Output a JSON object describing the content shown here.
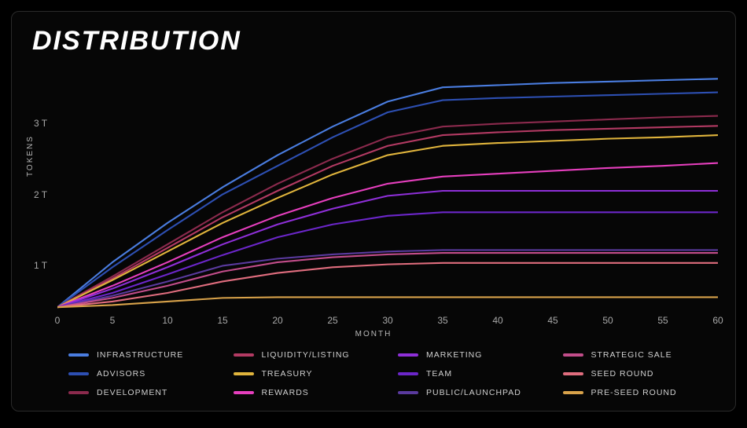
{
  "title": "DISTRIBUTION",
  "axes": {
    "x": {
      "label": "MONTH",
      "min": 0,
      "max": 60,
      "ticks": [
        0,
        5,
        10,
        15,
        20,
        25,
        30,
        35,
        40,
        45,
        50,
        55,
        60
      ],
      "tick_fontsize": 12,
      "tick_color": "#a9a9a9",
      "label_fontsize": 10,
      "label_color": "#b8b8b8"
    },
    "y": {
      "label": "TOKENS",
      "min": 0.4,
      "max": 3.7,
      "ticks": [
        1,
        2,
        3
      ],
      "tick_labels": [
        "1 T",
        "2 T",
        "3 T"
      ],
      "tick_fontsize": 12,
      "tick_color": "#a9a9a9",
      "label_fontsize": 10,
      "label_color": "#b8b8b8"
    }
  },
  "plot": {
    "type": "line",
    "background_color": "#060606",
    "panel_border_color": "#2a2a2a",
    "panel_border_radius": 10,
    "line_width": 2.1,
    "title_style": {
      "color": "#ffffff",
      "fontsize": 34,
      "weight": 800,
      "letter_spacing": 2,
      "italic": true
    }
  },
  "x_values": [
    0,
    5,
    10,
    15,
    20,
    25,
    30,
    35,
    40,
    45,
    50,
    55,
    60
  ],
  "series": [
    {
      "id": "infrastructure",
      "label": "INFRASTRUCTURE",
      "color": "#4a7de0",
      "y": [
        0.42,
        1.05,
        1.6,
        2.1,
        2.55,
        2.95,
        3.3,
        3.5,
        3.53,
        3.56,
        3.58,
        3.6,
        3.62
      ]
    },
    {
      "id": "advisors",
      "label": "ADVISORS",
      "color": "#2d4fb2",
      "y": [
        0.42,
        0.98,
        1.5,
        2.0,
        2.4,
        2.8,
        3.15,
        3.32,
        3.35,
        3.37,
        3.39,
        3.41,
        3.43
      ]
    },
    {
      "id": "development",
      "label": "DEVELOPMENT",
      "color": "#8b2a4d",
      "y": [
        0.42,
        0.85,
        1.3,
        1.75,
        2.15,
        2.5,
        2.8,
        2.95,
        2.99,
        3.02,
        3.05,
        3.08,
        3.1
      ]
    },
    {
      "id": "liquidity_listing",
      "label": "LIQUIDITY/LISTING",
      "color": "#b33a63",
      "y": [
        0.42,
        0.82,
        1.25,
        1.68,
        2.05,
        2.4,
        2.68,
        2.83,
        2.87,
        2.9,
        2.92,
        2.94,
        2.96
      ]
    },
    {
      "id": "treasury",
      "label": "TREASURY",
      "color": "#e0b43c",
      "y": [
        0.42,
        0.8,
        1.2,
        1.6,
        1.95,
        2.28,
        2.55,
        2.68,
        2.72,
        2.75,
        2.78,
        2.8,
        2.83
      ]
    },
    {
      "id": "rewards",
      "label": "REWARDS",
      "color": "#e63fbe",
      "y": [
        0.42,
        0.72,
        1.05,
        1.4,
        1.7,
        1.95,
        2.15,
        2.25,
        2.29,
        2.33,
        2.37,
        2.4,
        2.44
      ]
    },
    {
      "id": "marketing",
      "label": "MARKETING",
      "color": "#8e2fd8",
      "y": [
        0.42,
        0.68,
        0.98,
        1.3,
        1.58,
        1.8,
        1.98,
        2.05,
        2.05,
        2.05,
        2.05,
        2.05,
        2.05
      ]
    },
    {
      "id": "team",
      "label": "TEAM",
      "color": "#6b26c9",
      "y": [
        0.42,
        0.62,
        0.88,
        1.15,
        1.4,
        1.58,
        1.7,
        1.75,
        1.75,
        1.75,
        1.75,
        1.75,
        1.75
      ]
    },
    {
      "id": "public_launchpad",
      "label": "PUBLIC/LAUNCHPAD",
      "color": "#5a3a9e",
      "y": [
        0.42,
        0.58,
        0.78,
        1.0,
        1.1,
        1.16,
        1.2,
        1.22,
        1.22,
        1.22,
        1.22,
        1.22,
        1.22
      ]
    },
    {
      "id": "strategic_sale",
      "label": "STRATEGIC SALE",
      "color": "#c24d8a",
      "y": [
        0.42,
        0.55,
        0.72,
        0.92,
        1.05,
        1.12,
        1.16,
        1.18,
        1.18,
        1.18,
        1.18,
        1.18,
        1.18
      ]
    },
    {
      "id": "seed_round",
      "label": "SEED ROUND",
      "color": "#e06d7e",
      "y": [
        0.42,
        0.5,
        0.62,
        0.78,
        0.9,
        0.98,
        1.02,
        1.04,
        1.04,
        1.04,
        1.04,
        1.04,
        1.04
      ]
    },
    {
      "id": "preseed_round",
      "label": "PRE-SEED ROUND",
      "color": "#d8a24a",
      "y": [
        0.42,
        0.45,
        0.5,
        0.55,
        0.56,
        0.56,
        0.56,
        0.56,
        0.56,
        0.56,
        0.56,
        0.56,
        0.56
      ]
    }
  ],
  "legend": {
    "columns": 4,
    "order": [
      "infrastructure",
      "liquidity_listing",
      "marketing",
      "strategic_sale",
      "advisors",
      "treasury",
      "team",
      "seed_round",
      "development",
      "rewards",
      "public_launchpad",
      "preseed_round"
    ],
    "swatch": {
      "width": 26,
      "height": 4,
      "radius": 2
    },
    "label_color": "#d0d0d0",
    "label_fontsize": 10.5
  }
}
